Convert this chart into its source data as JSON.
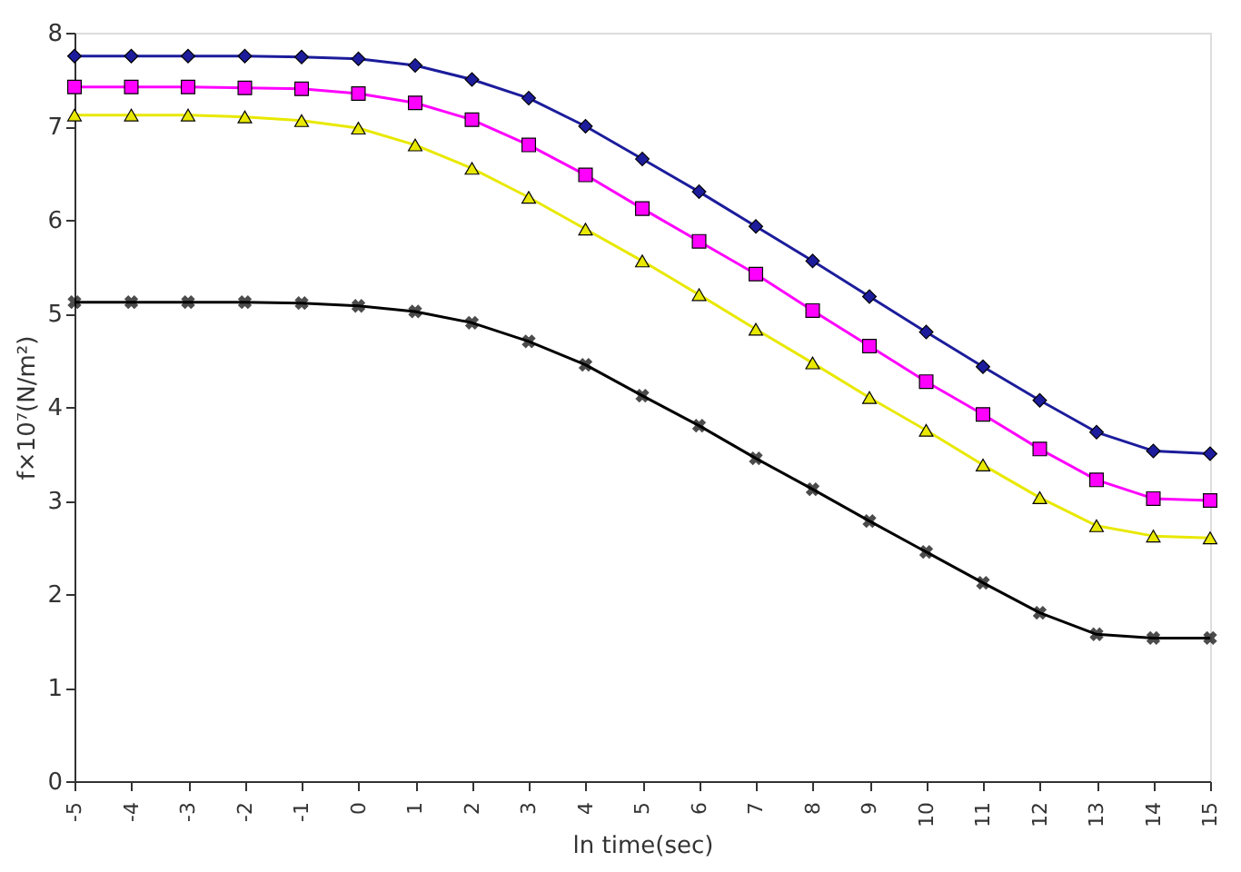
{
  "chart_data": {
    "type": "line",
    "x": [
      -5,
      -4,
      -3,
      -2,
      -1,
      0,
      1,
      2,
      3,
      4,
      5,
      6,
      7,
      8,
      9,
      10,
      11,
      12,
      13,
      14,
      15
    ],
    "xlabel": "ln time(sec)",
    "ylabel": "f×10⁷(N/m²)",
    "xlim": [
      -5,
      15
    ],
    "xticks": [
      -5,
      -4,
      -3,
      -2,
      -1,
      0,
      1,
      2,
      3,
      4,
      5,
      6,
      7,
      8,
      9,
      10,
      11,
      12,
      13,
      14,
      15
    ],
    "ylim": [
      0,
      8
    ],
    "yticks": [
      0,
      1,
      2,
      3,
      4,
      5,
      6,
      7,
      8
    ],
    "grid": false,
    "legend": false,
    "series": [
      {
        "color": "#1c1c9c",
        "marker": "diamond",
        "values": [
          7.75,
          7.75,
          7.75,
          7.75,
          7.74,
          7.72,
          7.65,
          7.5,
          7.3,
          7.0,
          6.65,
          6.3,
          5.93,
          5.56,
          5.18,
          4.8,
          4.43,
          4.07,
          3.73,
          3.53,
          3.5
        ]
      },
      {
        "color": "#ff00ff",
        "marker": "square",
        "values": [
          7.42,
          7.42,
          7.42,
          7.41,
          7.4,
          7.35,
          7.25,
          7.07,
          6.8,
          6.48,
          6.12,
          5.77,
          5.42,
          5.03,
          4.65,
          4.27,
          3.92,
          3.55,
          3.22,
          3.02,
          3.0
        ]
      },
      {
        "color": "#e8e800",
        "marker": "triangle",
        "values": [
          7.12,
          7.12,
          7.12,
          7.1,
          7.06,
          6.98,
          6.8,
          6.55,
          6.24,
          5.9,
          5.56,
          5.2,
          4.83,
          4.47,
          4.1,
          3.75,
          3.38,
          3.03,
          2.73,
          2.62,
          2.6
        ]
      },
      {
        "color": "#000000",
        "marker": "cross",
        "values": [
          5.12,
          5.12,
          5.12,
          5.12,
          5.11,
          5.08,
          5.02,
          4.9,
          4.7,
          4.45,
          4.12,
          3.8,
          3.45,
          3.12,
          2.78,
          2.45,
          2.12,
          1.8,
          1.57,
          1.53,
          1.53
        ]
      }
    ]
  }
}
